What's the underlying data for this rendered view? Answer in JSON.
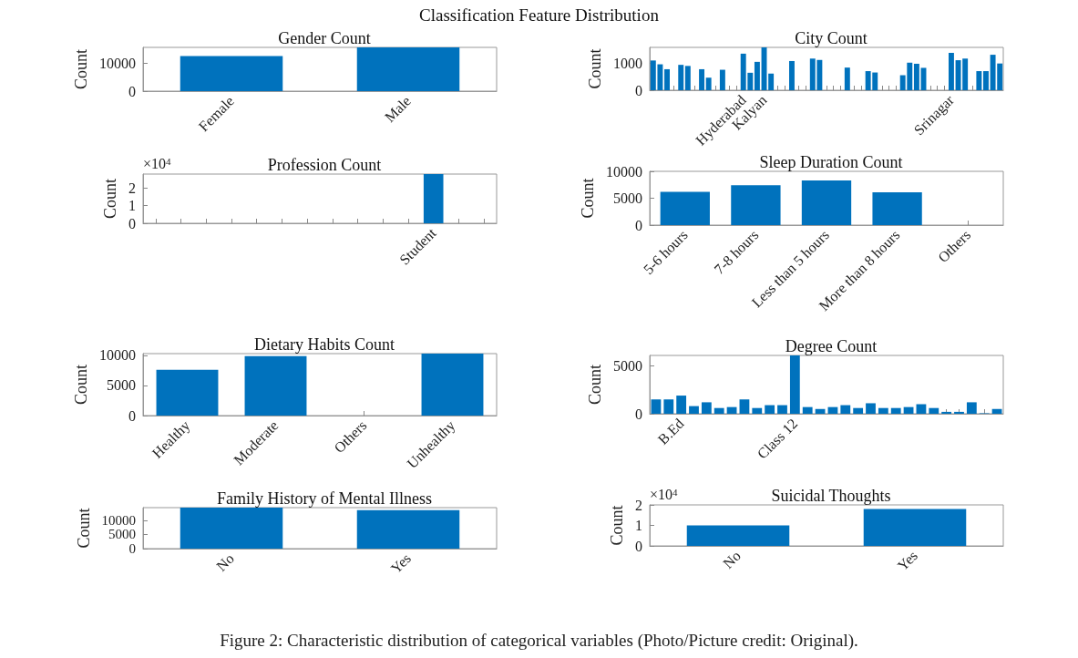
{
  "chart_data": [
    {
      "type": "bar",
      "title": "Gender Count",
      "ylabel": "Count",
      "categories": [
        "Female",
        "Male"
      ],
      "values": [
        12400,
        15500
      ],
      "color": "#0072bd",
      "ylim": [
        0,
        15500
      ],
      "yticks": [
        0,
        10000
      ]
    },
    {
      "type": "bar",
      "title": "City Count",
      "ylabel": "Count",
      "categories": [
        null,
        null,
        null,
        null,
        null,
        null,
        null,
        null,
        null,
        null,
        null,
        null,
        null,
        "Hyderabad",
        null,
        null,
        "Kalyan",
        null,
        null,
        null,
        null,
        null,
        null,
        null,
        null,
        null,
        null,
        null,
        null,
        null,
        null,
        null,
        null,
        null,
        null,
        null,
        null,
        null,
        null,
        null,
        null,
        null,
        null,
        "Srinagar",
        null,
        null,
        null,
        null,
        null,
        null,
        null
      ],
      "values": [
        1090,
        950,
        770,
        0,
        930,
        890,
        0,
        770,
        460,
        0,
        750,
        0,
        0,
        1340,
        640,
        1040,
        1570,
        610,
        0,
        0,
        1070,
        0,
        0,
        1160,
        1110,
        0,
        0,
        0,
        830,
        0,
        0,
        700,
        650,
        0,
        0,
        0,
        550,
        1010,
        970,
        820,
        0,
        0,
        0,
        1370,
        1100,
        1160,
        0,
        700,
        700,
        1300,
        980
      ],
      "color": "#0072bd",
      "ylim": [
        0,
        1570
      ],
      "yticks": [
        0,
        1000
      ]
    },
    {
      "type": "bar",
      "title": "Profession Count",
      "ylabel": "Count",
      "categories": [
        null,
        null,
        null,
        null,
        null,
        null,
        null,
        null,
        null,
        null,
        null,
        "Student",
        null,
        null
      ],
      "values": [
        0,
        0,
        0,
        0,
        0,
        0,
        0,
        0,
        0,
        0,
        0,
        2.8,
        0,
        0
      ],
      "color": "#0072bd",
      "ylim": [
        0,
        2.8
      ],
      "yticks": [
        0,
        1,
        2
      ],
      "annotations": [
        "×10$^{4}$"
      ]
    },
    {
      "type": "bar",
      "title": "Sleep Duration Count",
      "ylabel": "Count",
      "categories": [
        "5-6 hours",
        "7-8 hours",
        "Less than 5 hours",
        "More than 8 hours",
        "Others"
      ],
      "values": [
        6200,
        7400,
        8300,
        6100,
        0
      ],
      "color": "#0072bd",
      "ylim": [
        0,
        10000
      ],
      "yticks": [
        0,
        5000,
        10000
      ]
    },
    {
      "type": "bar",
      "title": "Dietary Habits Count",
      "ylabel": "Count",
      "categories": [
        "Healthy",
        "Moderate",
        "Others",
        "Unhealthy"
      ],
      "values": [
        7600,
        9900,
        0,
        10300
      ],
      "color": "#0072bd",
      "ylim": [
        0,
        10300
      ],
      "yticks": [
        0,
        5000,
        10000
      ]
    },
    {
      "type": "bar",
      "title": "Degree Count",
      "ylabel": "Count",
      "categories": [
        null,
        null,
        "B.Ed",
        null,
        null,
        null,
        null,
        null,
        null,
        null,
        null,
        "Class 12",
        null,
        null,
        null,
        null,
        null,
        null,
        null,
        null,
        null,
        null,
        null,
        null,
        null,
        null,
        null,
        null
      ],
      "values": [
        1500,
        1500,
        1900,
        800,
        1200,
        600,
        700,
        1500,
        600,
        900,
        900,
        6100,
        700,
        500,
        700,
        900,
        600,
        1100,
        600,
        600,
        700,
        1000,
        600,
        200,
        200,
        1200,
        50,
        500
      ],
      "color": "#0072bd",
      "ylim": [
        0,
        6100
      ],
      "yticks": [
        0,
        5000
      ]
    },
    {
      "type": "bar",
      "title": "Family History of Mental Illness",
      "ylabel": "Count",
      "categories": [
        "No",
        "Yes"
      ],
      "values": [
        14400,
        13500
      ],
      "color": "#0072bd",
      "ylim": [
        0,
        14400
      ],
      "yticks": [
        0,
        5000,
        10000
      ]
    },
    {
      "type": "bar",
      "title": "Suicidal Thoughts",
      "ylabel": "Count",
      "categories": [
        "No",
        "Yes"
      ],
      "values": [
        1.0,
        1.8
      ],
      "color": "#0072bd",
      "ylim": [
        0,
        2
      ],
      "yticks": [
        0,
        1,
        2
      ],
      "annotations": [
        "×10$^{4}$"
      ]
    },
    {
      "type": "other",
      "title": "Classification Feature Distribution",
      "annotations": [
        "Figure 2: Characteristic distribution of categorical variables (Photo/Picture credit: Original)."
      ]
    }
  ]
}
